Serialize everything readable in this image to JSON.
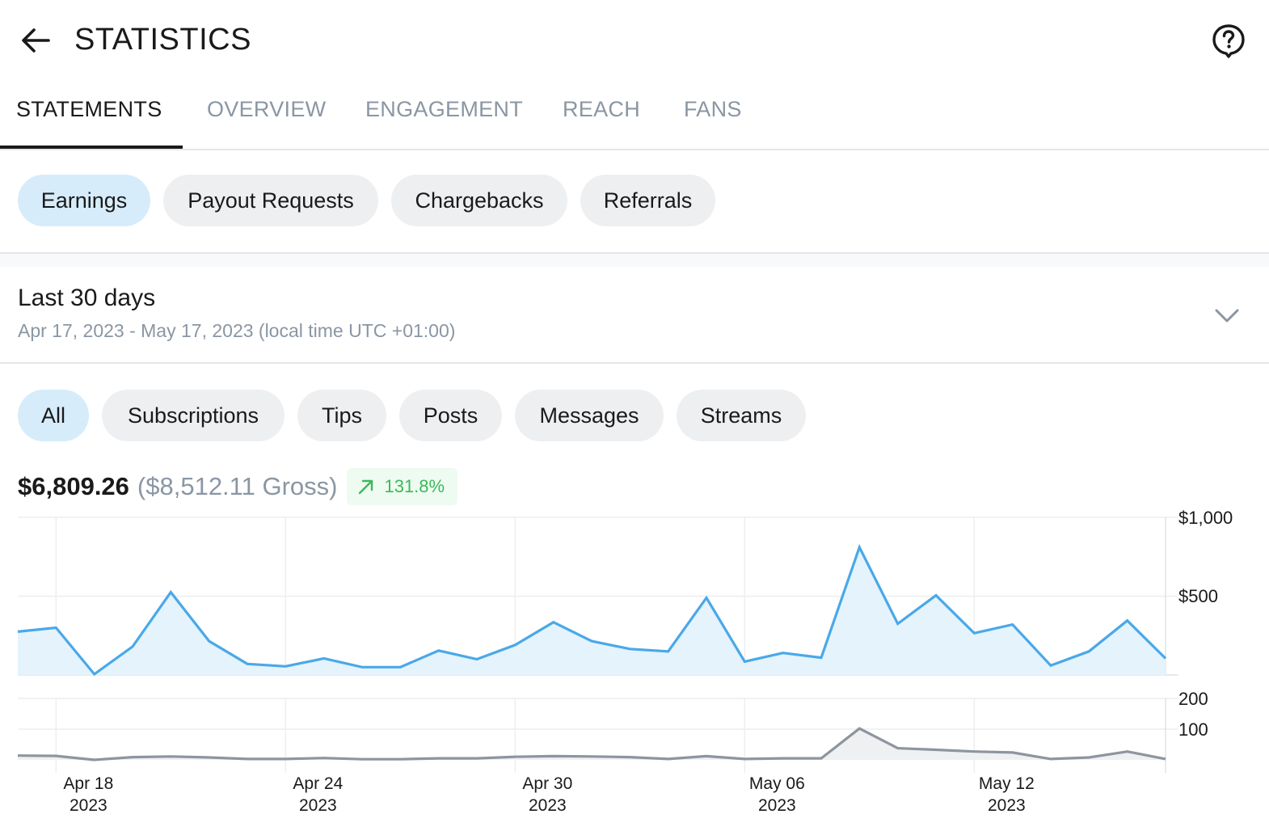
{
  "header": {
    "title": "STATISTICS",
    "back_icon": "arrow-left-icon",
    "help_icon": "help-circle-icon"
  },
  "tabs": [
    {
      "label": "STATEMENTS",
      "active": true
    },
    {
      "label": "OVERVIEW",
      "active": false
    },
    {
      "label": "ENGAGEMENT",
      "active": false
    },
    {
      "label": "REACH",
      "active": false
    },
    {
      "label": "FANS",
      "active": false
    }
  ],
  "statement_types": [
    {
      "label": "Earnings",
      "selected": true
    },
    {
      "label": "Payout Requests",
      "selected": false
    },
    {
      "label": "Chargebacks",
      "selected": false
    },
    {
      "label": "Referrals",
      "selected": false
    }
  ],
  "period": {
    "title": "Last 30 days",
    "range": "Apr 17, 2023 - May 17, 2023 (local time UTC +01:00)",
    "chevron_icon": "chevron-down-icon"
  },
  "earning_filters": [
    {
      "label": "All",
      "selected": true
    },
    {
      "label": "Subscriptions",
      "selected": false
    },
    {
      "label": "Tips",
      "selected": false
    },
    {
      "label": "Posts",
      "selected": false
    },
    {
      "label": "Messages",
      "selected": false
    },
    {
      "label": "Streams",
      "selected": false
    }
  ],
  "totals": {
    "net": "$6,809.26",
    "gross": "($8,512.11 Gross)",
    "change": "131.8%",
    "change_icon": "trend-up-arrow-icon"
  },
  "colors": {
    "accent": "#4aa8e8",
    "accent_fill": "#e4f3fc",
    "secondary_line": "#8d959e",
    "positive": "#3cb95b",
    "muted_text": "#8a96a3"
  },
  "chart_data": [
    {
      "type": "area",
      "x": [
        "2023-04-17",
        "2023-04-18",
        "2023-04-19",
        "2023-04-20",
        "2023-04-21",
        "2023-04-22",
        "2023-04-23",
        "2023-04-24",
        "2023-04-25",
        "2023-04-26",
        "2023-04-27",
        "2023-04-28",
        "2023-04-29",
        "2023-04-30",
        "2023-05-01",
        "2023-05-02",
        "2023-05-03",
        "2023-05-04",
        "2023-05-05",
        "2023-05-06",
        "2023-05-07",
        "2023-05-08",
        "2023-05-09",
        "2023-05-10",
        "2023-05-11",
        "2023-05-12",
        "2023-05-13",
        "2023-05-14",
        "2023-05-15",
        "2023-05-16",
        "2023-05-17"
      ],
      "series": [
        {
          "values": [
            275,
            300,
            5,
            180,
            525,
            215,
            70,
            55,
            105,
            50,
            50,
            155,
            100,
            190,
            335,
            215,
            165,
            150,
            490,
            85,
            140,
            110,
            810,
            325,
            505,
            265,
            320,
            60,
            150,
            345,
            105
          ]
        }
      ],
      "ylim": [
        0,
        1000
      ],
      "y_ticks": [
        "$500",
        "$1,000"
      ],
      "grid": true
    },
    {
      "type": "area",
      "x": [
        "2023-04-17",
        "2023-04-18",
        "2023-04-19",
        "2023-04-20",
        "2023-04-21",
        "2023-04-22",
        "2023-04-23",
        "2023-04-24",
        "2023-04-25",
        "2023-04-26",
        "2023-04-27",
        "2023-04-28",
        "2023-04-29",
        "2023-04-30",
        "2023-05-01",
        "2023-05-02",
        "2023-05-03",
        "2023-05-04",
        "2023-05-05",
        "2023-05-06",
        "2023-05-07",
        "2023-05-08",
        "2023-05-09",
        "2023-05-10",
        "2023-05-11",
        "2023-05-12",
        "2023-05-13",
        "2023-05-14",
        "2023-05-15",
        "2023-05-16",
        "2023-05-17"
      ],
      "series": [
        {
          "values": [
            14,
            13,
            0,
            9,
            11,
            8,
            3,
            3,
            6,
            2,
            2,
            5,
            5,
            10,
            12,
            11,
            9,
            3,
            12,
            3,
            5,
            5,
            102,
            38,
            33,
            27,
            24,
            3,
            8,
            27,
            3
          ]
        }
      ],
      "ylim": [
        0,
        200
      ],
      "y_ticks": [
        "100",
        "200"
      ],
      "x_ticks": [
        {
          "date": "2023-04-18",
          "line1": "Apr 18",
          "line2": "2023"
        },
        {
          "date": "2023-04-24",
          "line1": "Apr 24",
          "line2": "2023"
        },
        {
          "date": "2023-04-30",
          "line1": "Apr 30",
          "line2": "2023"
        },
        {
          "date": "2023-05-06",
          "line1": "May 06",
          "line2": "2023"
        },
        {
          "date": "2023-05-12",
          "line1": "May 12",
          "line2": "2023"
        }
      ],
      "grid": true
    }
  ]
}
